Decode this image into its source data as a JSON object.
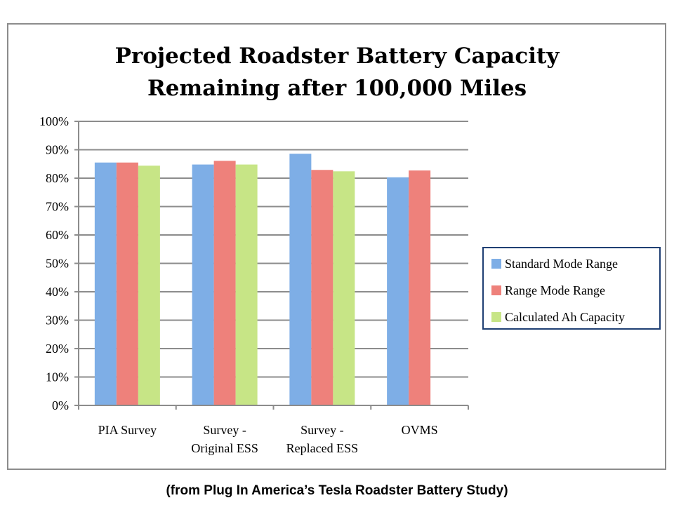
{
  "caption": "(from Plug In America’s Tesla Roadster Battery Study)",
  "chart_data": {
    "type": "bar",
    "title_lines": [
      "Projected Roadster Battery Capacity",
      "Remaining after 100,000 Miles"
    ],
    "categories": [
      [
        "PIA Survey"
      ],
      [
        "Survey -",
        "Original ESS"
      ],
      [
        "Survey -",
        "Replaced ESS"
      ],
      [
        "OVMS"
      ]
    ],
    "series": [
      {
        "name": "Standard Mode Range",
        "color": "#7eaee6",
        "values": [
          85.5,
          84.8,
          88.6,
          80.3
        ]
      },
      {
        "name": "Range Mode Range",
        "color": "#ee817b",
        "values": [
          85.5,
          86.1,
          82.9,
          82.7
        ]
      },
      {
        "name": "Calculated Ah Capacity",
        "color": "#c7e586",
        "values": [
          84.4,
          84.8,
          82.4,
          null
        ]
      }
    ],
    "ylim": [
      0,
      100
    ],
    "y_ticks": [
      "0%",
      "10%",
      "20%",
      "30%",
      "40%",
      "50%",
      "60%",
      "70%",
      "80%",
      "90%",
      "100%"
    ],
    "grid": true,
    "legend_position": "right",
    "xlabel": "",
    "ylabel": ""
  }
}
